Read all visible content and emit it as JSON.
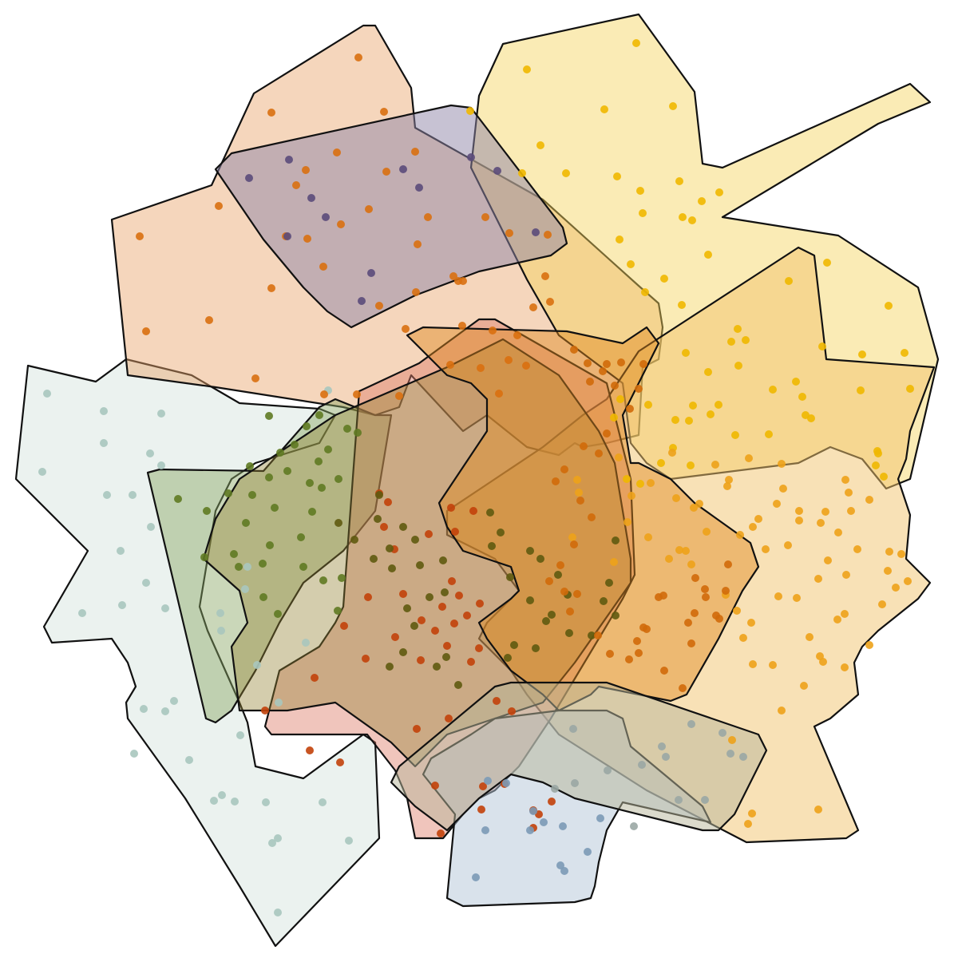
{
  "diagram": {
    "type": "cluster-hull-overlay",
    "regions": [
      {
        "id": "mint",
        "fill": "#d3e2dc",
        "point_color": "#a9c7be",
        "opacity": 0.45,
        "points": 38
      },
      {
        "id": "peach",
        "fill": "#e9a46a",
        "point_color": "#d9700f",
        "opacity": 0.45,
        "points": 44
      },
      {
        "id": "yellow",
        "fill": "#f5d35a",
        "point_color": "#f0b800",
        "opacity": 0.45,
        "points": 60
      },
      {
        "id": "light-orange",
        "fill": "#f2c46d",
        "point_color": "#eda21a",
        "opacity": 0.5,
        "points": 70
      },
      {
        "id": "slate-purple",
        "fill": "#8f86a8",
        "point_color": "#5b4b7a",
        "opacity": 0.5,
        "points": 12
      },
      {
        "id": "olive-green",
        "fill": "#8aa763",
        "point_color": "#5f7a22",
        "opacity": 0.45,
        "points": 34
      },
      {
        "id": "salmon-red",
        "fill": "#dd7e6b",
        "point_color": "#c2410a",
        "opacity": 0.45,
        "points": 42
      },
      {
        "id": "olive-brown",
        "fill": "#948233",
        "point_color": "#5f5a10",
        "opacity": 0.4,
        "points": 40
      },
      {
        "id": "amber",
        "fill": "#e08a1e",
        "point_color": "#d06a0a",
        "opacity": 0.45,
        "points": 44
      },
      {
        "id": "steel-blue",
        "fill": "#b4c6d8",
        "point_color": "#7b9ab6",
        "opacity": 0.5,
        "points": 12
      },
      {
        "id": "stone",
        "fill": "#b7b69a",
        "point_color": "#9aa7a4",
        "opacity": 0.5,
        "points": 14
      }
    ]
  }
}
